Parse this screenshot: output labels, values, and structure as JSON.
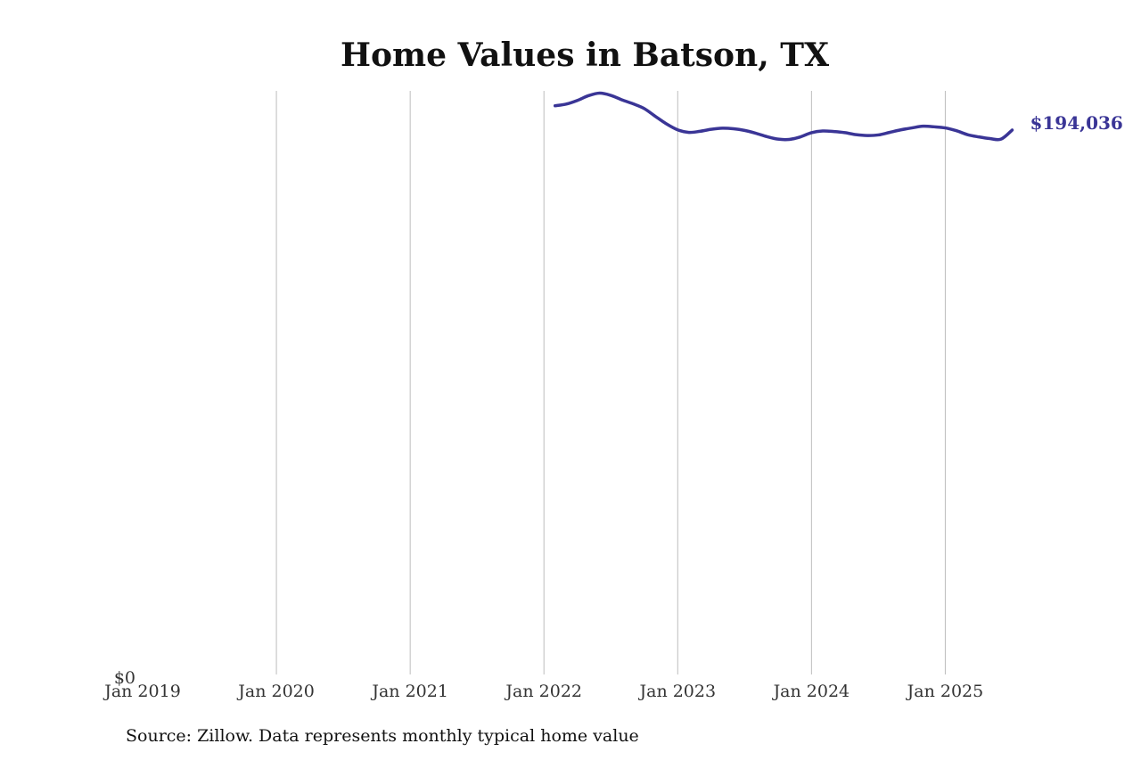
{
  "chart_data": {
    "type": "line",
    "title": "Home Values in Batson, TX",
    "source": "Source: Zillow. Data represents monthly typical home value",
    "xlim": [
      "2019-01",
      "2025-12"
    ],
    "ylim": [
      0,
      208000
    ],
    "y_tick_labels": [
      {
        "value": 0,
        "label": "$0"
      }
    ],
    "x_ticks": [
      {
        "date": "2019-01",
        "label": "Jan 2019"
      },
      {
        "date": "2020-01",
        "label": "Jan 2020"
      },
      {
        "date": "2021-01",
        "label": "Jan 2021"
      },
      {
        "date": "2022-01",
        "label": "Jan 2022"
      },
      {
        "date": "2023-01",
        "label": "Jan 2023"
      },
      {
        "date": "2024-01",
        "label": "Jan 2024"
      },
      {
        "date": "2025-01",
        "label": "Jan 2025"
      }
    ],
    "vertical_gridlines": true,
    "line_color": "#3a3596",
    "end_label": "$194,036",
    "series": [
      {
        "x": [
          "2022-02",
          "2022-03",
          "2022-04",
          "2022-05",
          "2022-06",
          "2022-07",
          "2022-08",
          "2022-09",
          "2022-10",
          "2022-11",
          "2022-12",
          "2023-01",
          "2023-02",
          "2023-03",
          "2023-04",
          "2023-05",
          "2023-06",
          "2023-07",
          "2023-08",
          "2023-09",
          "2023-10",
          "2023-11",
          "2023-12",
          "2024-01",
          "2024-02",
          "2024-03",
          "2024-04",
          "2024-05",
          "2024-06",
          "2024-07",
          "2024-08",
          "2024-09",
          "2024-10",
          "2024-11",
          "2024-12",
          "2025-01",
          "2025-02",
          "2025-03",
          "2025-04",
          "2025-05",
          "2025-06",
          "2025-07"
        ],
        "values": [
          202700,
          203300,
          204600,
          206300,
          207200,
          206400,
          204800,
          203400,
          201700,
          198900,
          196200,
          194100,
          193200,
          193600,
          194300,
          194700,
          194500,
          193900,
          192900,
          191700,
          190800,
          190700,
          191600,
          193100,
          193700,
          193500,
          193100,
          192400,
          192100,
          192300,
          193200,
          194100,
          194800,
          195400,
          195200,
          194800,
          193800,
          192400,
          191600,
          191000,
          190800,
          194036
        ]
      }
    ]
  }
}
